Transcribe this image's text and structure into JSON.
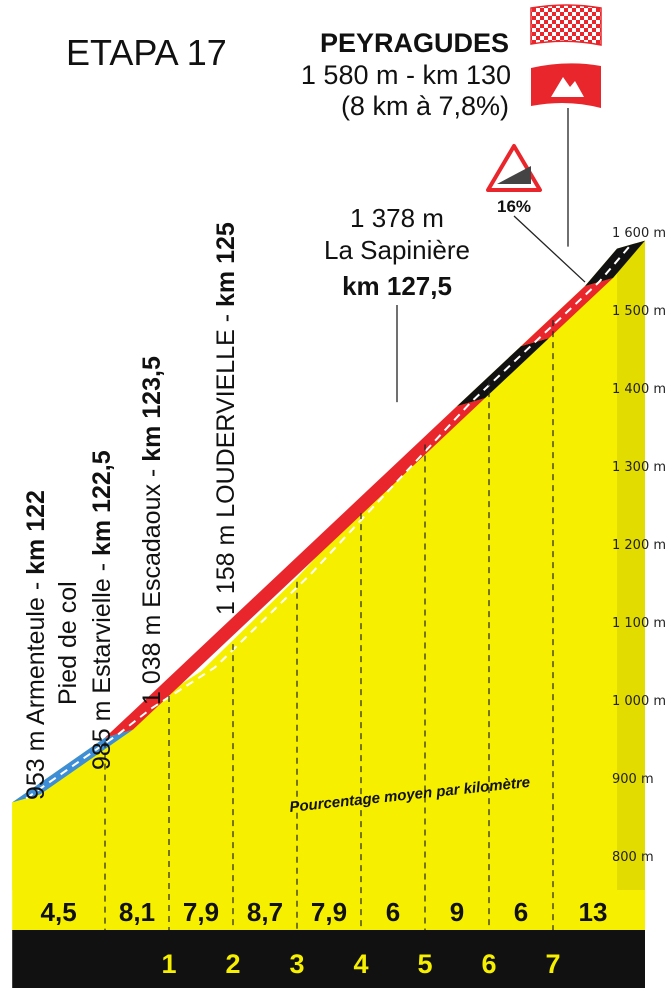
{
  "chart_data": {
    "type": "area",
    "title": "ETAPA 17",
    "ylim": [
      800,
      1600
    ],
    "y_ticks": [
      {
        "v": 1600,
        "label": "1 600 m"
      },
      {
        "v": 1500,
        "label": "1 500 m"
      },
      {
        "v": 1400,
        "label": "1 400 m"
      },
      {
        "v": 1300,
        "label": "1 300 m"
      },
      {
        "v": 1200,
        "label": "1 200 m"
      },
      {
        "v": 1100,
        "label": "1 100 m"
      },
      {
        "v": 1000,
        "label": "1 000 m"
      },
      {
        "v": 900,
        "label": "900 m"
      },
      {
        "v": 800,
        "label": "800 m"
      }
    ],
    "x_ticks": [
      "1",
      "2",
      "3",
      "4",
      "5",
      "6",
      "7"
    ],
    "elevation": [
      {
        "km": -1.45,
        "alt": 870
      },
      {
        "km": 0,
        "alt": 953
      },
      {
        "km": 0.5,
        "alt": 985
      },
      {
        "km": 1.5,
        "alt": 1038
      },
      {
        "km": 3,
        "alt": 1158
      },
      {
        "km": 5.5,
        "alt": 1378
      },
      {
        "km": 7.5,
        "alt": 1532
      },
      {
        "km": 8,
        "alt": 1580
      }
    ],
    "segments": [
      {
        "from": -1.45,
        "to": 0,
        "color": "#3d8ed6"
      },
      {
        "from": 0,
        "to": 5.5,
        "color": "#e8262b"
      },
      {
        "from": 5.5,
        "to": 6.5,
        "color": "#111111"
      },
      {
        "from": 6.5,
        "to": 7.5,
        "color": "#e8262b"
      },
      {
        "from": 7.5,
        "to": 8,
        "color": "#111111"
      }
    ],
    "km_percentages": [
      {
        "from": -1.45,
        "to": 0,
        "label": "4,5"
      },
      {
        "from": 0,
        "to": 1,
        "label": "8,1"
      },
      {
        "from": 1,
        "to": 2,
        "label": "7,9"
      },
      {
        "from": 2,
        "to": 3,
        "label": "8,7"
      },
      {
        "from": 3,
        "to": 4,
        "label": "7,9"
      },
      {
        "from": 4,
        "to": 5,
        "label": "6"
      },
      {
        "from": 5,
        "to": 6,
        "label": "9"
      },
      {
        "from": 6,
        "to": 7,
        "label": "6"
      },
      {
        "from": 7,
        "to": 8,
        "label": "13"
      }
    ],
    "subtitle": "Pourcentage moyen par kilomètre",
    "summit": {
      "name": "PEYRAGUDES",
      "line1": "1 580 m - km 130",
      "line2": "(8 km à 7,8%)"
    },
    "max_gradient": {
      "km": 7.5,
      "label": "16%"
    },
    "waypoints": [
      {
        "km": 0,
        "text": "953 m Armenteule - ",
        "bold": "km 122",
        "text2": "Pied de col"
      },
      {
        "km": 0.5,
        "text": "985 m Estarvielle - ",
        "bold": "km 122,5"
      },
      {
        "km": 1.5,
        "text": "1 038 m Escadaoux - ",
        "bold": "km 123,5"
      },
      {
        "km": 3,
        "text": "1 158 m LOUDERVIELLE - ",
        "bold": "km 125"
      }
    ],
    "col": {
      "km": 5.5,
      "line1": "1 378 m",
      "line2": "La Sapinière",
      "line3": "km 127,5"
    }
  }
}
